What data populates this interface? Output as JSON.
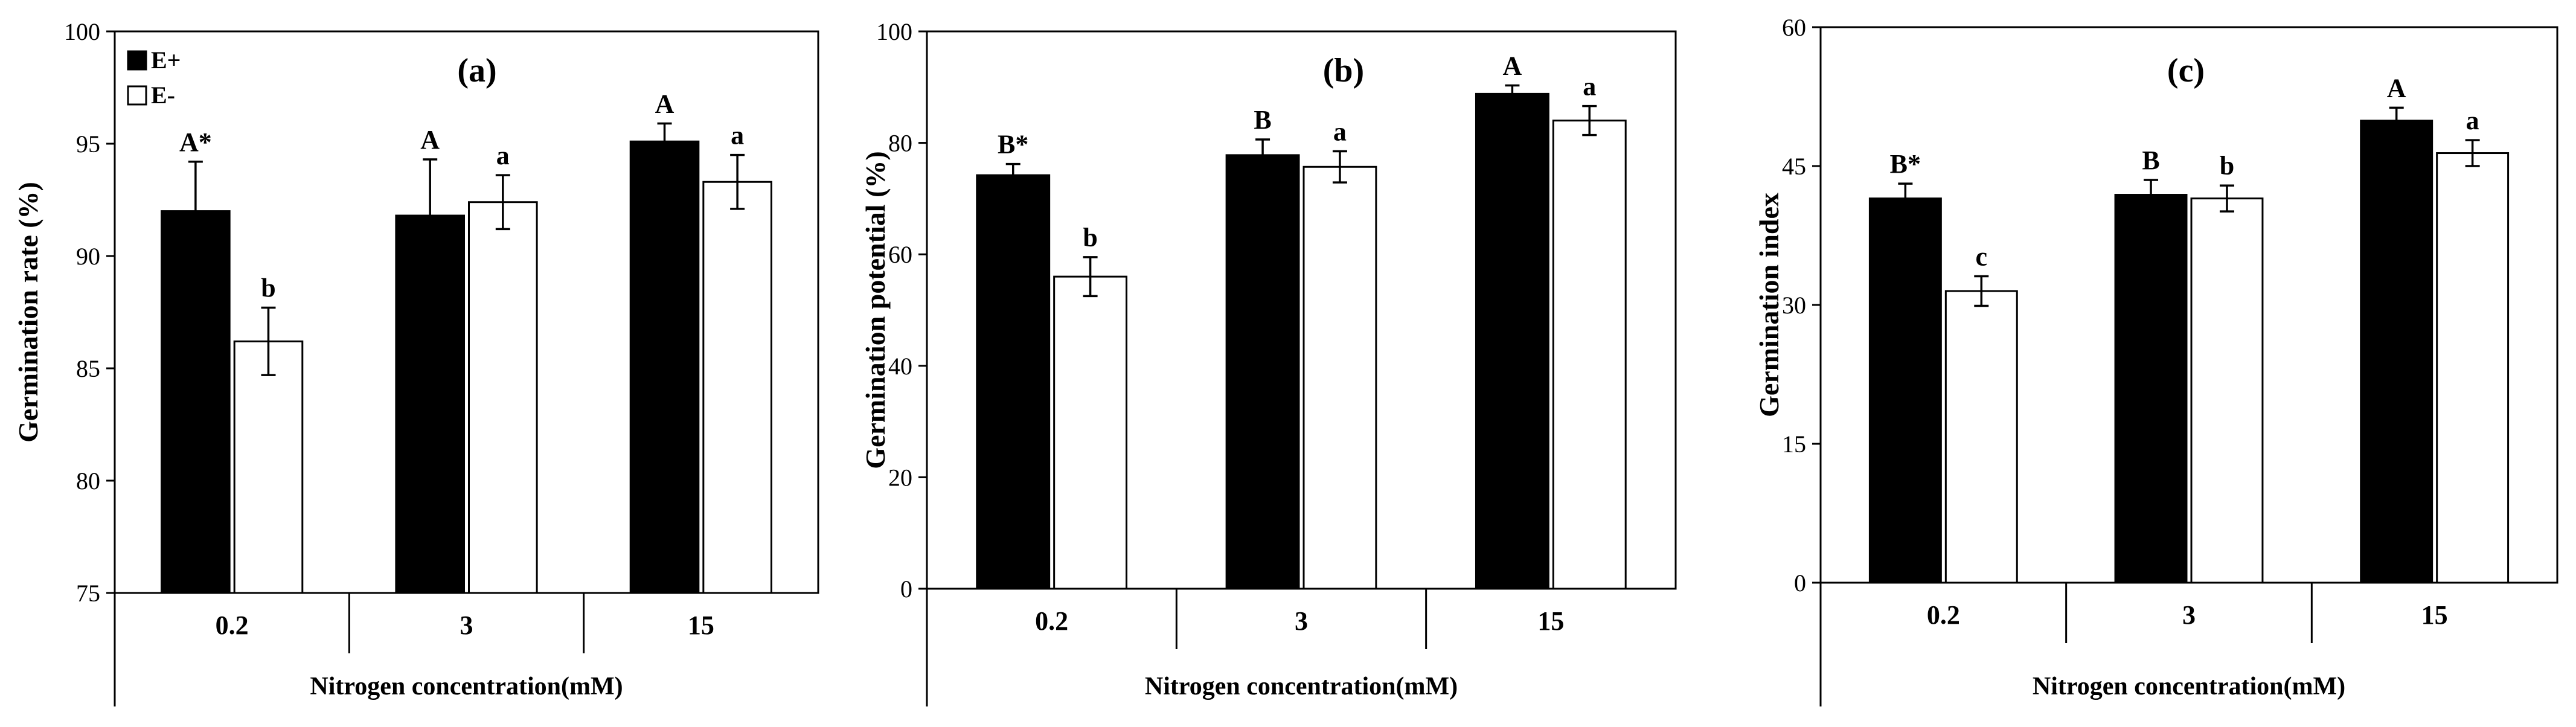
{
  "chart_data": [
    {
      "type": "bar",
      "title": "(a)",
      "xlabel": "Nitrogen concentration(mM)",
      "ylabel": "Germination rate (%)",
      "categories": [
        "0.2",
        "3",
        "15"
      ],
      "ylim": [
        75,
        100
      ],
      "yticks": [
        75,
        80,
        85,
        90,
        95,
        100
      ],
      "series": [
        {
          "name": "E+",
          "color": "#000000",
          "values": [
            92.0,
            91.8,
            95.1
          ],
          "errors": [
            2.2,
            2.5,
            0.8
          ],
          "labels": [
            "A*",
            "A",
            "A"
          ]
        },
        {
          "name": "E-",
          "color": "#ffffff",
          "values": [
            86.2,
            92.4,
            93.3
          ],
          "errors": [
            1.5,
            1.2,
            1.2
          ],
          "labels": [
            "b",
            "a",
            "a"
          ]
        }
      ],
      "legend": [
        "E+",
        "E-"
      ]
    },
    {
      "type": "bar",
      "title": "(b)",
      "xlabel": "Nitrogen concentration(mM)",
      "ylabel": "Germination potential (%)",
      "categories": [
        "0.2",
        "3",
        "15"
      ],
      "ylim": [
        0,
        100
      ],
      "yticks": [
        0,
        20,
        40,
        60,
        80,
        100
      ],
      "series": [
        {
          "name": "E+",
          "color": "#000000",
          "values": [
            74.2,
            77.8,
            88.8
          ],
          "errors": [
            2.0,
            2.8,
            1.5
          ],
          "labels": [
            "B*",
            "B",
            "A"
          ]
        },
        {
          "name": "E-",
          "color": "#ffffff",
          "values": [
            56.0,
            75.7,
            84.0
          ],
          "errors": [
            3.5,
            2.8,
            2.6
          ],
          "labels": [
            "b",
            "a",
            "a"
          ]
        }
      ]
    },
    {
      "type": "bar",
      "title": "(c)",
      "xlabel": "Nitrogen concentration(mM)",
      "ylabel": "Germination index",
      "categories": [
        "0.2",
        "3",
        "15"
      ],
      "ylim": [
        0,
        60
      ],
      "yticks": [
        0,
        15,
        30,
        45,
        60
      ],
      "series": [
        {
          "name": "E+",
          "color": "#000000",
          "values": [
            41.5,
            41.9,
            49.9
          ],
          "errors": [
            1.6,
            1.6,
            1.4
          ],
          "labels": [
            "B*",
            "B",
            "A"
          ]
        },
        {
          "name": "E-",
          "color": "#ffffff",
          "values": [
            31.5,
            41.5,
            46.4
          ],
          "errors": [
            1.6,
            1.4,
            1.4
          ],
          "labels": [
            "c",
            "b",
            "a"
          ]
        }
      ]
    }
  ]
}
